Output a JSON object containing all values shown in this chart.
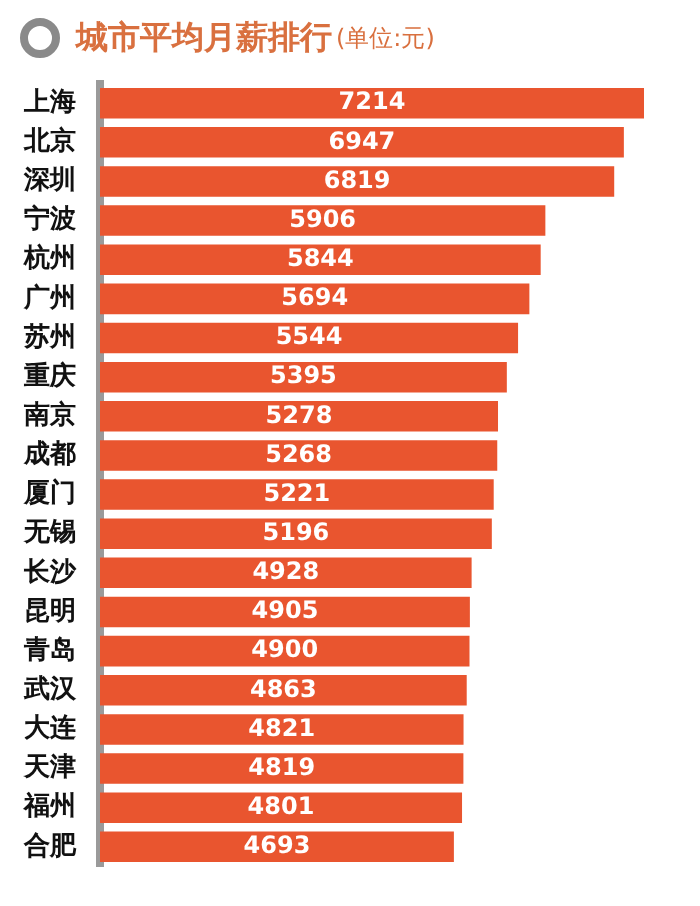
{
  "chart_data": {
    "type": "bar",
    "orientation": "horizontal",
    "title": "城市平均月薪排行",
    "subtitle": "(单位:元)",
    "categories": [
      "上海",
      "北京",
      "深圳",
      "宁波",
      "杭州",
      "广州",
      "苏州",
      "重庆",
      "南京",
      "成都",
      "厦门",
      "无锡",
      "长沙",
      "昆明",
      "青岛",
      "武汉",
      "大连",
      "天津",
      "福州",
      "合肥"
    ],
    "values": [
      7214,
      6947,
      6819,
      5906,
      5844,
      5694,
      5544,
      5395,
      5278,
      5268,
      5221,
      5196,
      4928,
      4905,
      4900,
      4863,
      4821,
      4819,
      4801,
      4693
    ],
    "color": "#e9552f",
    "data_labels": true,
    "legend": false
  }
}
